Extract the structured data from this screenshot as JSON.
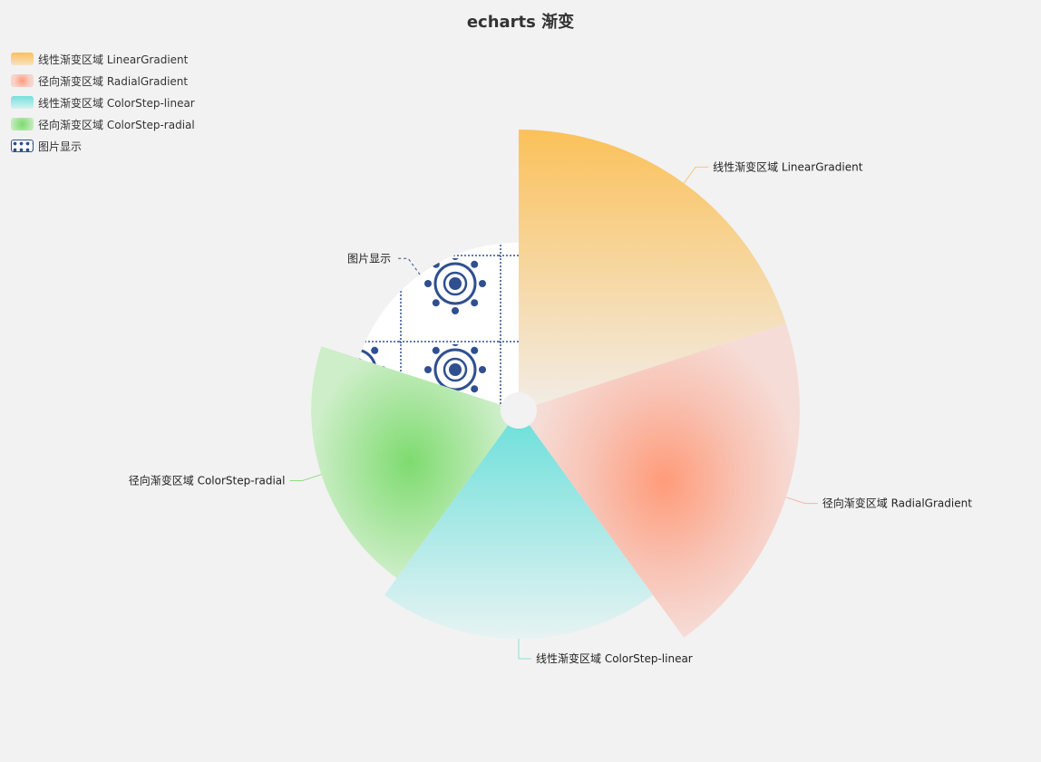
{
  "title": "echarts 渐变",
  "legend": [
    {
      "label": "线性渐变区域 LinearGradient",
      "swatch": "sw-linear"
    },
    {
      "label": "径向渐变区域 RadialGradient",
      "swatch": "sw-radial"
    },
    {
      "label": "线性渐变区域 ColorStep-linear",
      "swatch": "sw-step-linear"
    },
    {
      "label": "径向渐变区域 ColorStep-radial",
      "swatch": "sw-step-radial"
    },
    {
      "label": "图片显示",
      "swatch": "sw-pattern"
    }
  ],
  "chart_data": {
    "type": "pie",
    "title": "echarts 渐变",
    "rose_type": "radius",
    "slices": [
      {
        "name": "线性渐变区域 LinearGradient",
        "value": 100
      },
      {
        "name": "径向渐变区域 RadialGradient",
        "value": 100
      },
      {
        "name": "线性渐变区域 ColorStep-linear",
        "value": 80
      },
      {
        "name": "径向渐变区域 ColorStep-radial",
        "value": 72
      },
      {
        "name": "图片显示",
        "value": 57
      }
    ],
    "colors": {
      "linear_top": "#fbc15a",
      "linear_bottom": "#f2ece4",
      "radial_center": "#ff9b79",
      "radial_edge": "#f6dcd6",
      "step_linear_top": "#72e0db",
      "step_linear_bottom": "#e7f3f3",
      "step_radial_center": "#7edb6f",
      "step_radial_edge": "#cdeec8",
      "pattern_blue": "#2f4f8f"
    },
    "legend_position": "top-left"
  }
}
